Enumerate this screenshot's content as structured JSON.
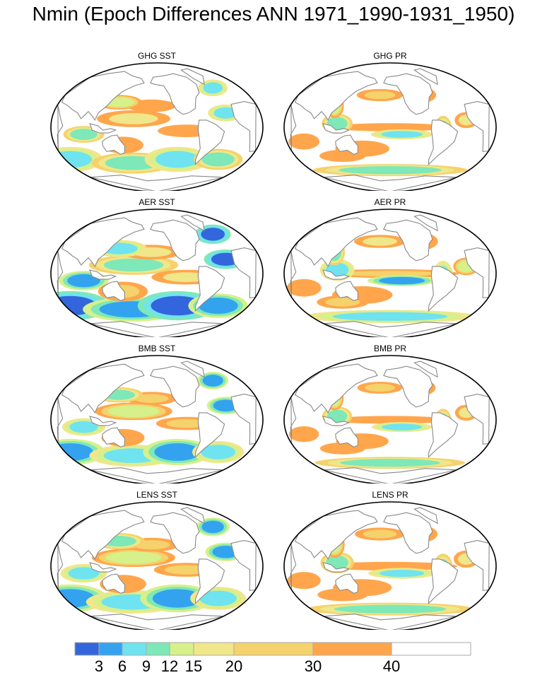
{
  "title": "Nmin (Epoch Differences ANN 1971_1990-1931_1950)",
  "panels": [
    {
      "title": "GHG SST",
      "field": "sst",
      "intensity": 0.45
    },
    {
      "title": "GHG PR",
      "field": "pr",
      "intensity": 0.35
    },
    {
      "title": "AER SST",
      "field": "sst",
      "intensity": 0.85
    },
    {
      "title": "AER PR",
      "field": "pr",
      "intensity": 0.55
    },
    {
      "title": "BMB SST",
      "field": "sst",
      "intensity": 0.55
    },
    {
      "title": "BMB PR",
      "field": "pr",
      "intensity": 0.3
    },
    {
      "title": "LENS SST",
      "field": "sst",
      "intensity": 0.7
    },
    {
      "title": "LENS PR",
      "field": "pr",
      "intensity": 0.5
    }
  ],
  "colorbar": {
    "boxes": [
      {
        "color": "#3366dd"
      },
      {
        "color": "#33a3f0"
      },
      {
        "color": "#6fe3f0"
      },
      {
        "color": "#7ee8b8"
      },
      {
        "color": "#d6f08a"
      },
      {
        "color": "#f0e68a"
      },
      {
        "color": "#f5d26b"
      },
      {
        "color": "#ffa64d"
      },
      {
        "color": "#ffffff"
      }
    ],
    "labels": [
      {
        "text": "3",
        "value": 3
      },
      {
        "text": "6",
        "value": 6
      },
      {
        "text": "9",
        "value": 9
      },
      {
        "text": "12",
        "value": 12
      },
      {
        "text": "15",
        "value": 15
      },
      {
        "text": "20",
        "value": 20
      },
      {
        "text": "30",
        "value": 30
      },
      {
        "text": "40",
        "value": 40
      }
    ]
  },
  "colors": {
    "land": "#ffffff",
    "coast": "#888888",
    "outline": "#000000"
  }
}
